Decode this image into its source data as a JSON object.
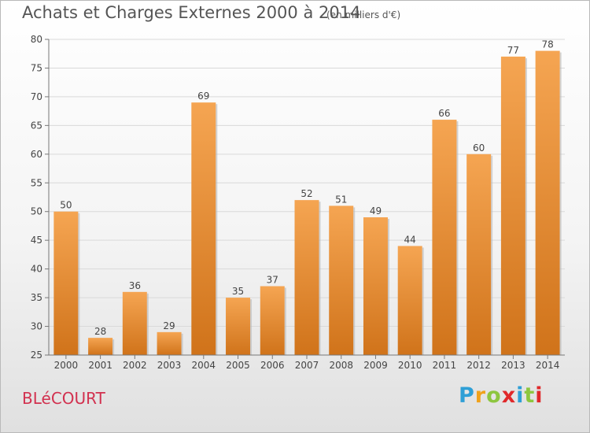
{
  "header": {
    "title": "Achats et Charges Externes 2000 à 2014",
    "subtitle": "(en milliers d'€)"
  },
  "footer": {
    "commune": "BLéCOURT",
    "logo": {
      "letters": [
        "P",
        "r",
        "o",
        "x",
        "i",
        "t",
        "i"
      ],
      "colors": [
        "#2e9fd6",
        "#f0a21b",
        "#8dc63f",
        "#e0282a",
        "#2e9fd6",
        "#8dc63f",
        "#e0282a"
      ]
    }
  },
  "chart_data": {
    "type": "bar",
    "title": "Achats et Charges Externes 2000 à 2014",
    "subtitle": "(en milliers d'€)",
    "categories": [
      "2000",
      "2001",
      "2002",
      "2003",
      "2004",
      "2005",
      "2006",
      "2007",
      "2008",
      "2009",
      "2010",
      "2011",
      "2012",
      "2013",
      "2014"
    ],
    "values": [
      50,
      28,
      36,
      29,
      69,
      35,
      37,
      52,
      51,
      49,
      44,
      66,
      60,
      77,
      78
    ],
    "ylim": [
      25,
      80
    ],
    "yticks": [
      25,
      30,
      35,
      40,
      45,
      50,
      55,
      60,
      65,
      70,
      75,
      80
    ],
    "grid": true,
    "data_labels": true,
    "colors": {
      "bar_light": "#f5a552",
      "bar_dark": "#d0731a",
      "grid": "#d9d9d9",
      "axis": "#777777",
      "text": "#444444"
    }
  }
}
